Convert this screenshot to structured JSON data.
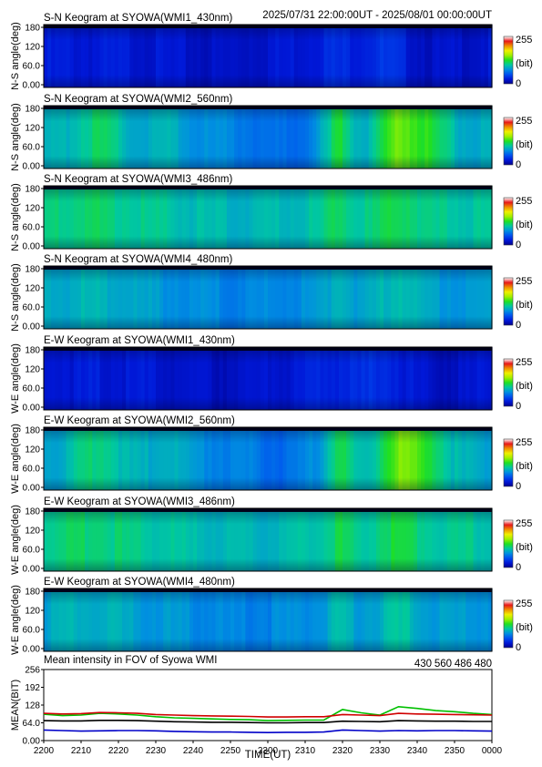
{
  "header": {
    "time_range": "2025/07/31 22:00:00UT - 2025/08/01 00:00:00UT"
  },
  "colorbar": {
    "max_label": "255",
    "unit_label": "(bit)",
    "min_label": "0"
  },
  "colorscale": [
    "#00008c",
    "#0018d8",
    "#0050f0",
    "#0090e0",
    "#00c8a0",
    "#20e020",
    "#a0f000",
    "#f0f000",
    "#f09000",
    "#e81818",
    "#ffffff"
  ],
  "panels": [
    {
      "title": "S-N Keogram at SYOWA(WMI1_430nm)",
      "ylabel": "N-S angle(deg)",
      "base": 0.1,
      "profile": "dim"
    },
    {
      "title": "S-N Keogram at SYOWA(WMI2_560nm)",
      "ylabel": "N-S angle(deg)",
      "base": 0.34,
      "profile": "bright"
    },
    {
      "title": "S-N Keogram at SYOWA(WMI3_486nm)",
      "ylabel": "N-S angle(deg)",
      "base": 0.4,
      "profile": "mid"
    },
    {
      "title": "S-N Keogram at SYOWA(WMI4_480nm)",
      "ylabel": "N-S angle(deg)",
      "base": 0.32,
      "profile": "mid"
    },
    {
      "title": "E-W Keogram at SYOWA(WMI1_430nm)",
      "ylabel": "W-E angle(deg)",
      "base": 0.1,
      "profile": "dim"
    },
    {
      "title": "E-W Keogram at SYOWA(WMI2_560nm)",
      "ylabel": "W-E angle(deg)",
      "base": 0.34,
      "profile": "bright"
    },
    {
      "title": "E-W Keogram at SYOWA(WMI3_486nm)",
      "ylabel": "W-E angle(deg)",
      "base": 0.4,
      "profile": "mid"
    },
    {
      "title": "E-W Keogram at SYOWA(WMI4_480nm)",
      "ylabel": "W-E angle(deg)",
      "base": 0.32,
      "profile": "mid"
    }
  ],
  "keogram_yticks": [
    "180",
    "120",
    "60.0",
    "0.00"
  ],
  "chart_data": {
    "type": "line",
    "title": "Mean intensity in FOV of Syowa WMI",
    "xlabel": "TIME(UT)",
    "ylabel": "MEAN(BIT)",
    "ylim": [
      0,
      256
    ],
    "yticks": [
      "256",
      "192",
      "128",
      "64.0",
      "0.00"
    ],
    "xticks": [
      "2200",
      "2210",
      "2220",
      "2230",
      "2240",
      "2250",
      "2300",
      "2310",
      "2320",
      "2330",
      "2340",
      "2350",
      "0000"
    ],
    "x": [
      0,
      5,
      10,
      15,
      20,
      25,
      30,
      35,
      40,
      45,
      50,
      55,
      60,
      65,
      70,
      75,
      80,
      85,
      90,
      95,
      100,
      105,
      110,
      115,
      120
    ],
    "series": [
      {
        "name": "430",
        "color": "#0000c8",
        "values": [
          38,
          36,
          34,
          35,
          36,
          36,
          35,
          33,
          32,
          31,
          31,
          30,
          29,
          30,
          30,
          31,
          38,
          36,
          34,
          36,
          35,
          36,
          36,
          35,
          34
        ]
      },
      {
        "name": "560",
        "color": "#00c000",
        "values": [
          95,
          90,
          92,
          98,
          96,
          92,
          86,
          82,
          80,
          78,
          76,
          75,
          72,
          73,
          74,
          74,
          112,
          100,
          92,
          122,
          116,
          108,
          104,
          98,
          94
        ]
      },
      {
        "name": "486",
        "color": "#d00000",
        "values": [
          98,
          96,
          97,
          101,
          100,
          98,
          94,
          92,
          90,
          89,
          88,
          87,
          85,
          85,
          86,
          86,
          94,
          92,
          90,
          98,
          96,
          95,
          94,
          93,
          92
        ]
      },
      {
        "name": "480",
        "color": "#000000",
        "values": [
          72,
          71,
          71,
          73,
          73,
          72,
          70,
          68,
          67,
          66,
          66,
          65,
          64,
          64,
          65,
          65,
          70,
          69,
          68,
          72,
          71,
          70,
          70,
          69,
          69
        ]
      }
    ]
  }
}
